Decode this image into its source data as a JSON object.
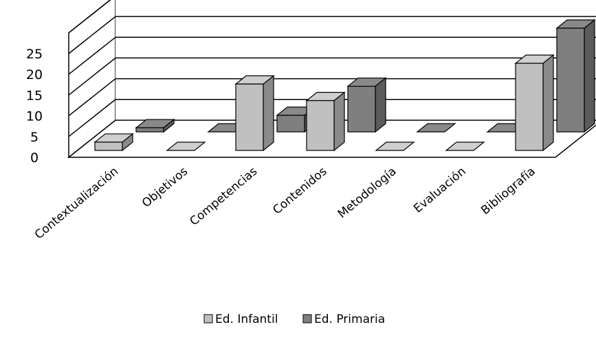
{
  "chart_data": {
    "type": "bar",
    "subtype": "3d-clustered-column",
    "categories": [
      "Contextualización",
      "Objetivos",
      "Competencias",
      "Contenidos",
      "Metodología",
      "Evaluación",
      "Bibliografía"
    ],
    "series": [
      {
        "name": "Ed. Infantil",
        "values": [
          2,
          0,
          16,
          12,
          0,
          0,
          21
        ],
        "color": "#c0c0c0"
      },
      {
        "name": "Ed. Primaria",
        "values": [
          1,
          0,
          4,
          11,
          0,
          0,
          25
        ],
        "color": "#7f7f7f"
      }
    ],
    "yticks": [
      0,
      5,
      10,
      15,
      20,
      25
    ],
    "ylim": [
      0,
      30
    ],
    "grid": true,
    "legend": "bottom"
  }
}
